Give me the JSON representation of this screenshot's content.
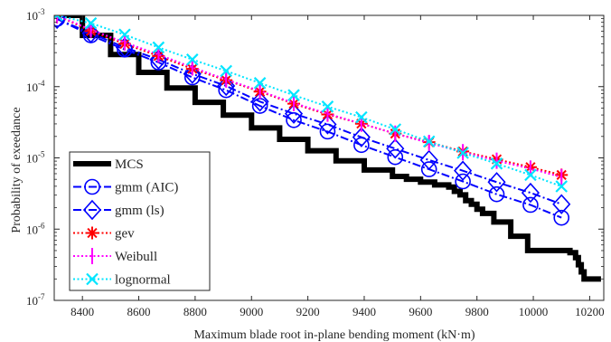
{
  "chart_data": {
    "type": "line",
    "xlabel": "Maximum blade root in-plane bending moment (kN·m)",
    "ylabel": "Probability of exeedance",
    "xlim": [
      8300,
      10250
    ],
    "ylim_exponent": [
      -7,
      -3
    ],
    "y_scale": "log",
    "grid": false,
    "legend_position": "bottom-left",
    "x_ticks": [
      "8400",
      "8600",
      "8800",
      "9000",
      "9200",
      "9400",
      "9600",
      "9800",
      "10000",
      "10200"
    ],
    "y_tick_base": "10",
    "y_ticks_exp": [
      "-7",
      "-6",
      "-5",
      "-4",
      "-3"
    ],
    "y_tick_values": [
      -7,
      -6,
      -5,
      -4,
      -3
    ],
    "mcs_steps": {
      "x": [
        8310,
        8400,
        8500,
        8600,
        8700,
        8800,
        8900,
        9000,
        9100,
        9200,
        9300,
        9400,
        9500,
        9550,
        9600,
        9650,
        9700,
        9720,
        9740,
        9760,
        9780,
        9800,
        9820,
        9860,
        9900,
        9920,
        9960,
        9980,
        10000,
        10030,
        10060,
        10100,
        10130,
        10150,
        10160,
        10170,
        10180,
        10190,
        10240
      ],
      "log10_p": [
        -3.0,
        -3.28,
        -3.55,
        -3.8,
        -4.02,
        -4.22,
        -4.4,
        -4.58,
        -4.74,
        -4.9,
        -5.04,
        -5.17,
        -5.26,
        -5.3,
        -5.34,
        -5.38,
        -5.41,
        -5.47,
        -5.52,
        -5.6,
        -5.65,
        -5.72,
        -5.78,
        -5.9,
        -5.9,
        -6.1,
        -6.1,
        -6.3,
        -6.3,
        -6.3,
        -6.3,
        -6.3,
        -6.33,
        -6.4,
        -6.5,
        -6.6,
        -6.7,
        -6.7,
        -6.7
      ]
    },
    "series": [
      {
        "name": "MCS",
        "color": "#000000",
        "style": "solid",
        "marker": "none",
        "width": 6
      },
      {
        "name": "gmm (AIC)",
        "color": "#0000ff",
        "style": "dashdot",
        "marker": "circle",
        "x": [
          8310,
          8430,
          8550,
          8670,
          8790,
          8910,
          9030,
          9150,
          9270,
          9390,
          9510,
          9630,
          9750,
          9870,
          9990,
          10100
        ],
        "log10_p": [
          -3.05,
          -3.28,
          -3.48,
          -3.66,
          -3.87,
          -4.05,
          -4.27,
          -4.47,
          -4.63,
          -4.82,
          -4.99,
          -5.16,
          -5.33,
          -5.51,
          -5.66,
          -5.84
        ]
      },
      {
        "name": "gmm (ls)",
        "color": "#0000ff",
        "style": "dashdot",
        "marker": "diamond",
        "x": [
          8310,
          8430,
          8550,
          8670,
          8790,
          8910,
          9030,
          9150,
          9270,
          9390,
          9510,
          9630,
          9750,
          9870,
          9990,
          10100
        ],
        "log10_p": [
          -3.05,
          -3.25,
          -3.45,
          -3.62,
          -3.82,
          -3.99,
          -4.21,
          -4.38,
          -4.53,
          -4.71,
          -4.87,
          -5.03,
          -5.18,
          -5.34,
          -5.49,
          -5.65
        ]
      },
      {
        "name": "gev",
        "color": "#ff0000",
        "style": "dotted",
        "marker": "star",
        "x": [
          8310,
          8430,
          8550,
          8670,
          8790,
          8910,
          9030,
          9150,
          9270,
          9390,
          9510,
          9630,
          9750,
          9870,
          9990,
          10100
        ],
        "log10_p": [
          -3.0,
          -3.22,
          -3.4,
          -3.57,
          -3.75,
          -3.91,
          -4.07,
          -4.24,
          -4.39,
          -4.52,
          -4.66,
          -4.78,
          -4.91,
          -5.02,
          -5.13,
          -5.24
        ]
      },
      {
        "name": "Weibull",
        "color": "#ff00ff",
        "style": "dotted",
        "marker": "vbar",
        "x": [
          8310,
          8430,
          8550,
          8670,
          8790,
          8910,
          9030,
          9150,
          9270,
          9390,
          9510,
          9630,
          9750,
          9870,
          9990,
          10100
        ],
        "log10_p": [
          -3.0,
          -3.2,
          -3.38,
          -3.55,
          -3.73,
          -3.9,
          -4.06,
          -4.23,
          -4.38,
          -4.52,
          -4.66,
          -4.79,
          -4.92,
          -5.04,
          -5.15,
          -5.27
        ]
      },
      {
        "name": "lognormal",
        "color": "#00e5ff",
        "style": "dotted",
        "marker": "x",
        "x": [
          8310,
          8430,
          8550,
          8670,
          8790,
          8910,
          9030,
          9150,
          9270,
          9390,
          9510,
          9630,
          9750,
          9870,
          9990,
          10100
        ],
        "log10_p": [
          -3.0,
          -3.11,
          -3.27,
          -3.45,
          -3.62,
          -3.78,
          -3.95,
          -4.12,
          -4.28,
          -4.43,
          -4.6,
          -4.77,
          -4.93,
          -5.08,
          -5.24,
          -5.4
        ]
      }
    ]
  }
}
